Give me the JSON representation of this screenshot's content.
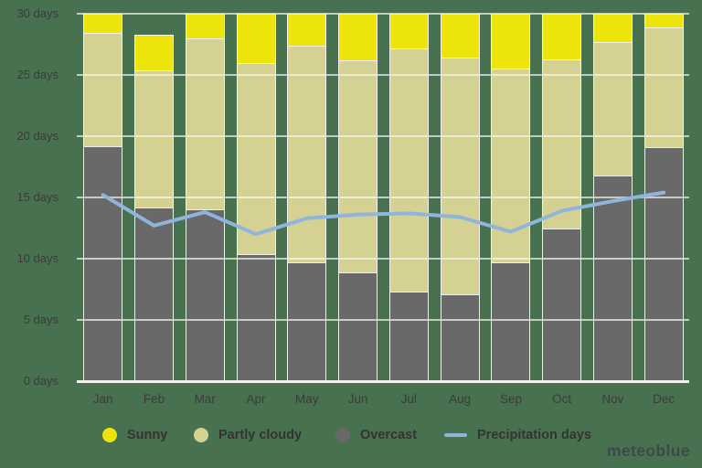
{
  "chart_data": {
    "type": "bar",
    "stacked": true,
    "title": "",
    "xlabel": "",
    "ylabel": "",
    "unit": "days",
    "grid": true,
    "legend_position": "bottom",
    "categories": [
      "Jan",
      "Feb",
      "Mar",
      "Apr",
      "May",
      "Jun",
      "Jul",
      "Aug",
      "Sep",
      "Oct",
      "Nov",
      "Dec"
    ],
    "y_axis": {
      "min": 0,
      "max": 30,
      "tick_step": 5,
      "tick_labels": [
        "0 days",
        "5 days",
        "10 days",
        "15 days",
        "20 days",
        "25 days",
        "30 days"
      ]
    },
    "series": [
      {
        "name": "Overcast",
        "type": "bar",
        "color": "#696969",
        "values": [
          19.2,
          14.2,
          14.0,
          10.4,
          9.7,
          8.9,
          7.3,
          7.1,
          9.7,
          12.5,
          16.8,
          19.1
        ]
      },
      {
        "name": "Partly cloudy",
        "type": "bar",
        "color": "#d5d193",
        "values": [
          9.2,
          11.2,
          14.0,
          15.6,
          17.7,
          17.3,
          19.9,
          19.3,
          15.8,
          13.8,
          10.9,
          9.8
        ]
      },
      {
        "name": "Sunny",
        "type": "bar",
        "color": "#ece40b",
        "values": [
          1.8,
          2.9,
          2.2,
          4.2,
          2.8,
          4.0,
          3.0,
          3.8,
          4.7,
          3.9,
          2.5,
          1.3
        ]
      },
      {
        "name": "Precipitation days",
        "type": "line",
        "color": "#8fb5dc",
        "values": [
          15.2,
          12.7,
          13.8,
          12.0,
          13.3,
          13.6,
          13.7,
          13.4,
          12.2,
          13.9,
          14.7,
          15.4
        ]
      }
    ]
  },
  "legend": {
    "items": [
      {
        "label": "Sunny",
        "swatch": "circle",
        "color": "#ece40b"
      },
      {
        "label": "Partly cloudy",
        "swatch": "circle",
        "color": "#d5d193"
      },
      {
        "label": "Overcast",
        "swatch": "circle",
        "color": "#696969"
      },
      {
        "label": "Precipitation days",
        "swatch": "line",
        "color": "#8fb5dc"
      }
    ]
  },
  "watermark": "meteoblue"
}
